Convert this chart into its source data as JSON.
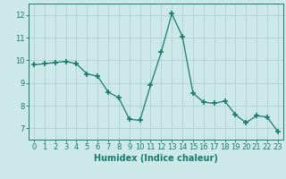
{
  "x": [
    0,
    1,
    2,
    3,
    4,
    5,
    6,
    7,
    8,
    9,
    10,
    11,
    12,
    13,
    14,
    15,
    16,
    17,
    18,
    19,
    20,
    21,
    22,
    23
  ],
  "y": [
    9.8,
    9.85,
    9.9,
    9.95,
    9.85,
    9.4,
    9.3,
    8.6,
    8.35,
    7.4,
    7.35,
    8.9,
    10.35,
    12.05,
    11.05,
    8.55,
    8.15,
    8.1,
    8.2,
    7.6,
    7.25,
    7.55,
    7.5,
    6.85
  ],
  "line_color": "#1a7a6e",
  "marker": "+",
  "marker_size": 4,
  "marker_lw": 1.2,
  "bg_color": "#cce8e8",
  "grid_color": "#b0d0d0",
  "tick_color": "#1a7a6e",
  "label_color": "#1a7a6e",
  "xlabel": "Humidex (Indice chaleur)",
  "ylim": [
    6.5,
    12.5
  ],
  "yticks": [
    7,
    8,
    9,
    10,
    11,
    12
  ],
  "xticks": [
    0,
    1,
    2,
    3,
    4,
    5,
    6,
    7,
    8,
    9,
    10,
    11,
    12,
    13,
    14,
    15,
    16,
    17,
    18,
    19,
    20,
    21,
    22,
    23
  ],
  "xlabel_fontsize": 7,
  "tick_fontsize": 6
}
